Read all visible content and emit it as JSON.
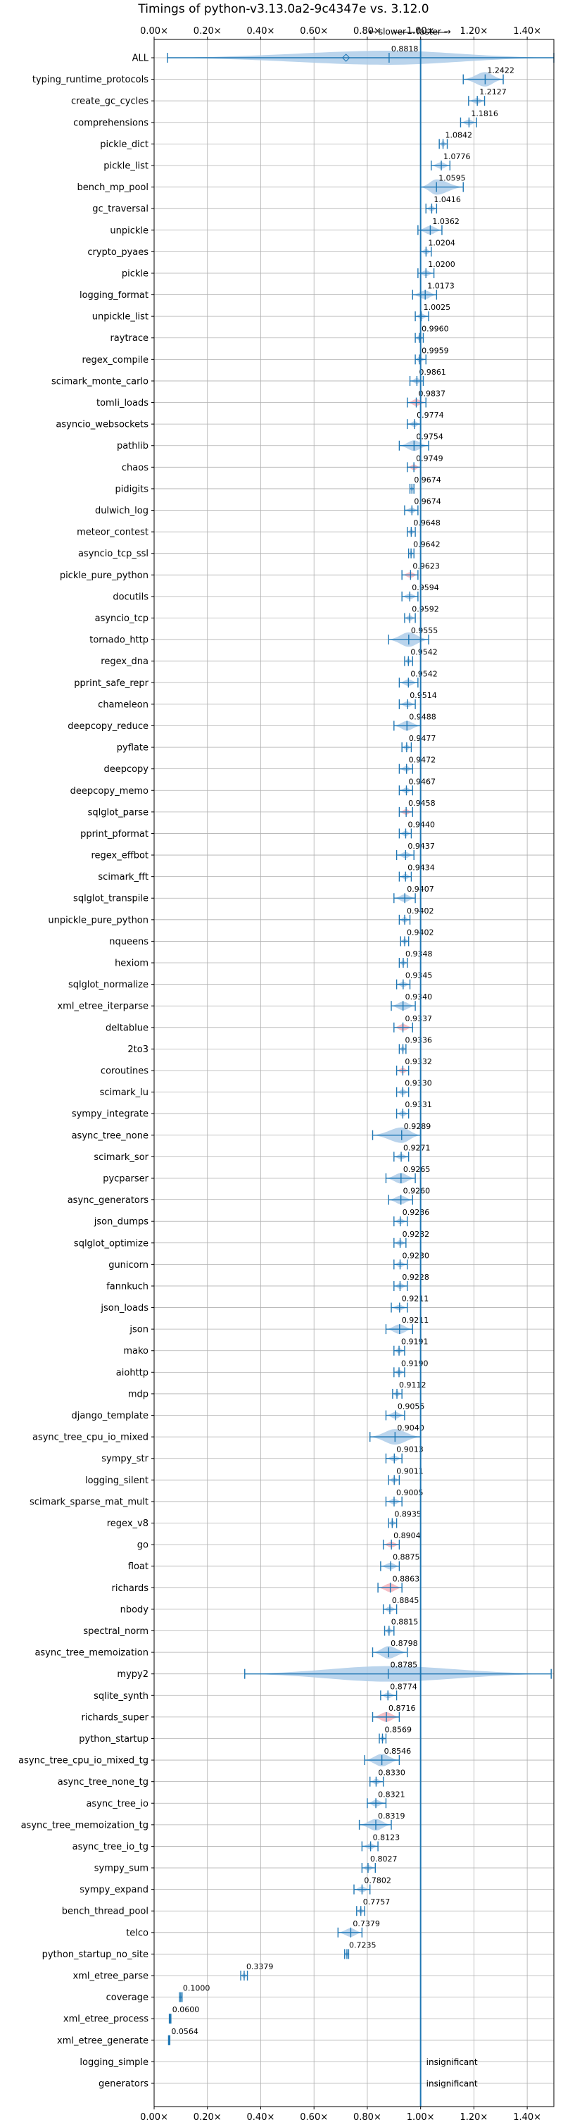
{
  "chart_data": {
    "type": "violin",
    "title": "Timings of python-v3.13.0a2-9c4347e vs. 3.12.0",
    "direction_labels": {
      "slower": "← slower",
      "faster": "faster →"
    },
    "xlim": [
      0.0,
      1.5
    ],
    "xticks": [
      "0.00×",
      "0.20×",
      "0.40×",
      "0.60×",
      "0.80×",
      "1.00×",
      "1.20×",
      "1.40×"
    ],
    "xtick_values": [
      0.0,
      0.2,
      0.4,
      0.6,
      0.8,
      1.0,
      1.2,
      1.4
    ],
    "reference_line": 1.0,
    "grid": true,
    "colors": {
      "normal": "#1f77b4",
      "normal_fill": "#aecde9",
      "flagged_fill": "#f4b3bb",
      "flagged_edge": "#d62728"
    },
    "insignificant_label": "insignificant",
    "benchmarks": [
      {
        "name": "ALL",
        "value": 0.8818,
        "label": "0.8818",
        "range": [
          0.05,
          1.5
        ],
        "flag": false
      },
      {
        "name": "typing_runtime_protocols",
        "value": 1.2422,
        "label": "1.2422",
        "range": [
          1.16,
          1.31
        ],
        "flag": false
      },
      {
        "name": "create_gc_cycles",
        "value": 1.2127,
        "label": "1.2127",
        "range": [
          1.18,
          1.24
        ],
        "flag": false
      },
      {
        "name": "comprehensions",
        "value": 1.1816,
        "label": "1.1816",
        "range": [
          1.15,
          1.21
        ],
        "flag": false
      },
      {
        "name": "pickle_dict",
        "value": 1.0842,
        "label": "1.0842",
        "range": [
          1.07,
          1.1
        ],
        "flag": false
      },
      {
        "name": "pickle_list",
        "value": 1.0776,
        "label": "1.0776",
        "range": [
          1.04,
          1.11
        ],
        "flag": false
      },
      {
        "name": "bench_mp_pool",
        "value": 1.0595,
        "label": "1.0595",
        "range": [
          1.0,
          1.16
        ],
        "flag": false
      },
      {
        "name": "gc_traversal",
        "value": 1.0416,
        "label": "1.0416",
        "range": [
          1.02,
          1.06
        ],
        "flag": false
      },
      {
        "name": "unpickle",
        "value": 1.0362,
        "label": "1.0362",
        "range": [
          0.99,
          1.08
        ],
        "flag": false
      },
      {
        "name": "crypto_pyaes",
        "value": 1.0204,
        "label": "1.0204",
        "range": [
          1.0,
          1.04
        ],
        "flag": false
      },
      {
        "name": "pickle",
        "value": 1.02,
        "label": "1.0200",
        "range": [
          0.99,
          1.05
        ],
        "flag": false
      },
      {
        "name": "logging_format",
        "value": 1.0173,
        "label": "1.0173",
        "range": [
          0.97,
          1.06
        ],
        "flag": false
      },
      {
        "name": "unpickle_list",
        "value": 1.0025,
        "label": "1.0025",
        "range": [
          0.98,
          1.03
        ],
        "flag": false
      },
      {
        "name": "raytrace",
        "value": 0.996,
        "label": "0.9960",
        "range": [
          0.98,
          1.01
        ],
        "flag": false
      },
      {
        "name": "regex_compile",
        "value": 0.9959,
        "label": "0.9959",
        "range": [
          0.98,
          1.02
        ],
        "flag": false
      },
      {
        "name": "scimark_monte_carlo",
        "value": 0.9861,
        "label": "0.9861",
        "range": [
          0.96,
          1.01
        ],
        "flag": false
      },
      {
        "name": "tomli_loads",
        "value": 0.9837,
        "label": "0.9837",
        "range": [
          0.95,
          1.02
        ],
        "flag": true
      },
      {
        "name": "asyncio_websockets",
        "value": 0.9774,
        "label": "0.9774",
        "range": [
          0.95,
          1.0
        ],
        "flag": false
      },
      {
        "name": "pathlib",
        "value": 0.9754,
        "label": "0.9754",
        "range": [
          0.92,
          1.03
        ],
        "flag": false
      },
      {
        "name": "chaos",
        "value": 0.9749,
        "label": "0.9749",
        "range": [
          0.95,
          1.0
        ],
        "flag": true
      },
      {
        "name": "pidigits",
        "value": 0.9674,
        "label": "0.9674",
        "range": [
          0.96,
          0.975
        ],
        "flag": false
      },
      {
        "name": "dulwich_log",
        "value": 0.9674,
        "label": "0.9674",
        "range": [
          0.94,
          0.99
        ],
        "flag": false
      },
      {
        "name": "meteor_contest",
        "value": 0.9648,
        "label": "0.9648",
        "range": [
          0.95,
          0.98
        ],
        "flag": false
      },
      {
        "name": "asyncio_tcp_ssl",
        "value": 0.9642,
        "label": "0.9642",
        "range": [
          0.955,
          0.975
        ],
        "flag": false
      },
      {
        "name": "pickle_pure_python",
        "value": 0.9623,
        "label": "0.9623",
        "range": [
          0.93,
          0.99
        ],
        "flag": true
      },
      {
        "name": "docutils",
        "value": 0.9594,
        "label": "0.9594",
        "range": [
          0.93,
          0.99
        ],
        "flag": false
      },
      {
        "name": "asyncio_tcp",
        "value": 0.9592,
        "label": "0.9592",
        "range": [
          0.94,
          0.98
        ],
        "flag": false
      },
      {
        "name": "tornado_http",
        "value": 0.9555,
        "label": "0.9555",
        "range": [
          0.88,
          1.03
        ],
        "flag": false
      },
      {
        "name": "regex_dna",
        "value": 0.9542,
        "label": "0.9542",
        "range": [
          0.94,
          0.97
        ],
        "flag": false
      },
      {
        "name": "pprint_safe_repr",
        "value": 0.9542,
        "label": "0.9542",
        "range": [
          0.92,
          0.99
        ],
        "flag": false
      },
      {
        "name": "chameleon",
        "value": 0.9514,
        "label": "0.9514",
        "range": [
          0.92,
          0.98
        ],
        "flag": false
      },
      {
        "name": "deepcopy_reduce",
        "value": 0.9488,
        "label": "0.9488",
        "range": [
          0.9,
          1.0
        ],
        "flag": false
      },
      {
        "name": "pyflate",
        "value": 0.9477,
        "label": "0.9477",
        "range": [
          0.93,
          0.965
        ],
        "flag": false
      },
      {
        "name": "deepcopy",
        "value": 0.9472,
        "label": "0.9472",
        "range": [
          0.92,
          0.97
        ],
        "flag": false
      },
      {
        "name": "deepcopy_memo",
        "value": 0.9467,
        "label": "0.9467",
        "range": [
          0.92,
          0.97
        ],
        "flag": false
      },
      {
        "name": "sqlglot_parse",
        "value": 0.9458,
        "label": "0.9458",
        "range": [
          0.92,
          0.97
        ],
        "flag": true
      },
      {
        "name": "pprint_pformat",
        "value": 0.944,
        "label": "0.9440",
        "range": [
          0.92,
          0.965
        ],
        "flag": false
      },
      {
        "name": "regex_effbot",
        "value": 0.9437,
        "label": "0.9437",
        "range": [
          0.91,
          0.975
        ],
        "flag": false
      },
      {
        "name": "scimark_fft",
        "value": 0.9434,
        "label": "0.9434",
        "range": [
          0.92,
          0.965
        ],
        "flag": false
      },
      {
        "name": "sqlglot_transpile",
        "value": 0.9407,
        "label": "0.9407",
        "range": [
          0.9,
          0.98
        ],
        "flag": false
      },
      {
        "name": "unpickle_pure_python",
        "value": 0.9402,
        "label": "0.9402",
        "range": [
          0.92,
          0.96
        ],
        "flag": false
      },
      {
        "name": "nqueens",
        "value": 0.9402,
        "label": "0.9402",
        "range": [
          0.925,
          0.955
        ],
        "flag": false
      },
      {
        "name": "hexiom",
        "value": 0.9348,
        "label": "0.9348",
        "range": [
          0.92,
          0.95
        ],
        "flag": false
      },
      {
        "name": "sqlglot_normalize",
        "value": 0.9345,
        "label": "0.9345",
        "range": [
          0.91,
          0.96
        ],
        "flag": false
      },
      {
        "name": "xml_etree_iterparse",
        "value": 0.934,
        "label": "0.9340",
        "range": [
          0.89,
          0.98
        ],
        "flag": false
      },
      {
        "name": "deltablue",
        "value": 0.9337,
        "label": "0.9337",
        "range": [
          0.9,
          0.97
        ],
        "flag": true
      },
      {
        "name": "2to3",
        "value": 0.9336,
        "label": "0.9336",
        "range": [
          0.92,
          0.945
        ],
        "flag": false
      },
      {
        "name": "coroutines",
        "value": 0.9332,
        "label": "0.9332",
        "range": [
          0.91,
          0.955
        ],
        "flag": true
      },
      {
        "name": "scimark_lu",
        "value": 0.933,
        "label": "0.9330",
        "range": [
          0.91,
          0.955
        ],
        "flag": false
      },
      {
        "name": "sympy_integrate",
        "value": 0.9331,
        "label": "0.9331",
        "range": [
          0.91,
          0.955
        ],
        "flag": false
      },
      {
        "name": "async_tree_none",
        "value": 0.9289,
        "label": "0.9289",
        "range": [
          0.82,
          1.0
        ],
        "flag": false
      },
      {
        "name": "scimark_sor",
        "value": 0.9271,
        "label": "0.9271",
        "range": [
          0.9,
          0.955
        ],
        "flag": false
      },
      {
        "name": "pycparser",
        "value": 0.9265,
        "label": "0.9265",
        "range": [
          0.87,
          0.98
        ],
        "flag": false
      },
      {
        "name": "async_generators",
        "value": 0.926,
        "label": "0.9260",
        "range": [
          0.88,
          0.97
        ],
        "flag": false
      },
      {
        "name": "json_dumps",
        "value": 0.9236,
        "label": "0.9236",
        "range": [
          0.9,
          0.95
        ],
        "flag": false
      },
      {
        "name": "sqlglot_optimize",
        "value": 0.9232,
        "label": "0.9232",
        "range": [
          0.9,
          0.945
        ],
        "flag": false
      },
      {
        "name": "gunicorn",
        "value": 0.923,
        "label": "0.9230",
        "range": [
          0.9,
          0.95
        ],
        "flag": false
      },
      {
        "name": "fannkuch",
        "value": 0.9228,
        "label": "0.9228",
        "range": [
          0.9,
          0.95
        ],
        "flag": false
      },
      {
        "name": "json_loads",
        "value": 0.9211,
        "label": "0.9211",
        "range": [
          0.89,
          0.95
        ],
        "flag": false
      },
      {
        "name": "json",
        "value": 0.9211,
        "label": "0.9211",
        "range": [
          0.87,
          0.97
        ],
        "flag": false
      },
      {
        "name": "mako",
        "value": 0.9191,
        "label": "0.9191",
        "range": [
          0.9,
          0.94
        ],
        "flag": false
      },
      {
        "name": "aiohttp",
        "value": 0.919,
        "label": "0.9190",
        "range": [
          0.9,
          0.94
        ],
        "flag": false
      },
      {
        "name": "mdp",
        "value": 0.9112,
        "label": "0.9112",
        "range": [
          0.895,
          0.93
        ],
        "flag": false
      },
      {
        "name": "django_template",
        "value": 0.9055,
        "label": "0.9055",
        "range": [
          0.87,
          0.94
        ],
        "flag": false
      },
      {
        "name": "async_tree_cpu_io_mixed",
        "value": 0.904,
        "label": "0.9040",
        "range": [
          0.81,
          1.0
        ],
        "flag": false
      },
      {
        "name": "sympy_str",
        "value": 0.9013,
        "label": "0.9013",
        "range": [
          0.87,
          0.93
        ],
        "flag": false
      },
      {
        "name": "logging_silent",
        "value": 0.9011,
        "label": "0.9011",
        "range": [
          0.88,
          0.92
        ],
        "flag": false
      },
      {
        "name": "scimark_sparse_mat_mult",
        "value": 0.9005,
        "label": "0.9005",
        "range": [
          0.87,
          0.93
        ],
        "flag": false
      },
      {
        "name": "regex_v8",
        "value": 0.8935,
        "label": "0.8935",
        "range": [
          0.88,
          0.91
        ],
        "flag": false
      },
      {
        "name": "go",
        "value": 0.8904,
        "label": "0.8904",
        "range": [
          0.86,
          0.92
        ],
        "flag": true
      },
      {
        "name": "float",
        "value": 0.8875,
        "label": "0.8875",
        "range": [
          0.85,
          0.92
        ],
        "flag": false
      },
      {
        "name": "richards",
        "value": 0.8863,
        "label": "0.8863",
        "range": [
          0.84,
          0.93
        ],
        "flag": true
      },
      {
        "name": "nbody",
        "value": 0.8845,
        "label": "0.8845",
        "range": [
          0.86,
          0.91
        ],
        "flag": false
      },
      {
        "name": "spectral_norm",
        "value": 0.8815,
        "label": "0.8815",
        "range": [
          0.865,
          0.9
        ],
        "flag": false
      },
      {
        "name": "async_tree_memoization",
        "value": 0.8798,
        "label": "0.8798",
        "range": [
          0.82,
          0.95
        ],
        "flag": false
      },
      {
        "name": "mypy2",
        "value": 0.8785,
        "label": "0.8785",
        "range": [
          0.34,
          1.49
        ],
        "flag": false
      },
      {
        "name": "sqlite_synth",
        "value": 0.8774,
        "label": "0.8774",
        "range": [
          0.85,
          0.91
        ],
        "flag": false
      },
      {
        "name": "richards_super",
        "value": 0.8716,
        "label": "0.8716",
        "range": [
          0.82,
          0.92
        ],
        "flag": true
      },
      {
        "name": "python_startup",
        "value": 0.8569,
        "label": "0.8569",
        "range": [
          0.845,
          0.87
        ],
        "flag": false
      },
      {
        "name": "async_tree_cpu_io_mixed_tg",
        "value": 0.8546,
        "label": "0.8546",
        "range": [
          0.79,
          0.92
        ],
        "flag": false
      },
      {
        "name": "async_tree_none_tg",
        "value": 0.833,
        "label": "0.8330",
        "range": [
          0.81,
          0.86
        ],
        "flag": false
      },
      {
        "name": "async_tree_io",
        "value": 0.8321,
        "label": "0.8321",
        "range": [
          0.8,
          0.87
        ],
        "flag": false
      },
      {
        "name": "async_tree_memoization_tg",
        "value": 0.8319,
        "label": "0.8319",
        "range": [
          0.77,
          0.89
        ],
        "flag": false
      },
      {
        "name": "async_tree_io_tg",
        "value": 0.8123,
        "label": "0.8123",
        "range": [
          0.78,
          0.84
        ],
        "flag": false
      },
      {
        "name": "sympy_sum",
        "value": 0.8027,
        "label": "0.8027",
        "range": [
          0.78,
          0.83
        ],
        "flag": false
      },
      {
        "name": "sympy_expand",
        "value": 0.7802,
        "label": "0.7802",
        "range": [
          0.75,
          0.81
        ],
        "flag": false
      },
      {
        "name": "bench_thread_pool",
        "value": 0.7757,
        "label": "0.7757",
        "range": [
          0.76,
          0.79
        ],
        "flag": false
      },
      {
        "name": "telco",
        "value": 0.7379,
        "label": "0.7379",
        "range": [
          0.69,
          0.78
        ],
        "flag": false
      },
      {
        "name": "python_startup_no_site",
        "value": 0.7235,
        "label": "0.7235",
        "range": [
          0.715,
          0.73
        ],
        "flag": false
      },
      {
        "name": "xml_etree_parse",
        "value": 0.3379,
        "label": "0.3379",
        "range": [
          0.325,
          0.35
        ],
        "flag": false
      },
      {
        "name": "coverage",
        "value": 0.1,
        "label": "0.1000",
        "range": [
          0.095,
          0.105
        ],
        "flag": false
      },
      {
        "name": "xml_etree_process",
        "value": 0.06,
        "label": "0.0600",
        "range": [
          0.057,
          0.063
        ],
        "flag": false
      },
      {
        "name": "xml_etree_generate",
        "value": 0.0564,
        "label": "0.0564",
        "range": [
          0.054,
          0.059
        ],
        "flag": false
      },
      {
        "name": "logging_simple",
        "value": null,
        "label": "insignificant",
        "range": null,
        "flag": false
      },
      {
        "name": "generators",
        "value": null,
        "label": "insignificant",
        "range": null,
        "flag": false
      }
    ]
  }
}
